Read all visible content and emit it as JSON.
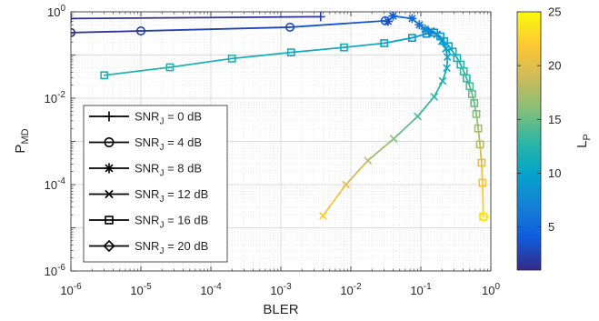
{
  "chart_data": {
    "type": "line",
    "title": "",
    "xlabel": "BLER",
    "ylabel": {
      "main": "P",
      "sub": "MD"
    },
    "xscale": "log",
    "yscale": "log",
    "xlim": [
      1e-06,
      1
    ],
    "ylim": [
      1e-06,
      1
    ],
    "grid": true,
    "minor_grid": true,
    "x_ticks": [
      {
        "value": 1e-06,
        "base": "10",
        "exp": "-6"
      },
      {
        "value": 1e-05,
        "base": "10",
        "exp": "-5"
      },
      {
        "value": 0.0001,
        "base": "10",
        "exp": "-4"
      },
      {
        "value": 0.001,
        "base": "10",
        "exp": "-3"
      },
      {
        "value": 0.01,
        "base": "10",
        "exp": "-2"
      },
      {
        "value": 0.1,
        "base": "10",
        "exp": "-1"
      },
      {
        "value": 1,
        "base": "10",
        "exp": "0"
      }
    ],
    "y_ticks": [
      {
        "value": 1e-06,
        "base": "10",
        "exp": "-6"
      },
      {
        "value": 0.0001,
        "base": "10",
        "exp": "-4"
      },
      {
        "value": 0.01,
        "base": "10",
        "exp": "-2"
      },
      {
        "value": 1,
        "base": "10",
        "exp": "0"
      }
    ],
    "colorbar": {
      "label": {
        "main": "L",
        "sub": "P"
      },
      "range": [
        1,
        25
      ],
      "ticks": [
        "5",
        "10",
        "15",
        "20",
        "25"
      ],
      "colormap": "parula",
      "stops": [
        "#352a87",
        "#0f5cdd",
        "#1481d6",
        "#06a4ca",
        "#2eb7a4",
        "#87bf77",
        "#d1bb59",
        "#fec832",
        "#f9fb0e"
      ]
    },
    "legend": {
      "placement": "bottom-left",
      "entries": [
        {
          "marker": "plus",
          "prefix": "SNR",
          "sub": "J",
          "suffix": " = 0 dB"
        },
        {
          "marker": "circle",
          "prefix": "SNR",
          "sub": "J",
          "suffix": " = 4 dB"
        },
        {
          "marker": "asterisk",
          "prefix": "SNR",
          "sub": "J",
          "suffix": " = 8 dB"
        },
        {
          "marker": "x",
          "prefix": "SNR",
          "sub": "J",
          "suffix": " = 12 dB"
        },
        {
          "marker": "square",
          "prefix": "SNR",
          "sub": "J",
          "suffix": " = 16 dB"
        },
        {
          "marker": "diamond",
          "prefix": "SNR",
          "sub": "J",
          "suffix": " = 20 dB"
        }
      ]
    },
    "series": [
      {
        "marker": "plus",
        "points": [
          {
            "x": 1e-06,
            "y": 0.7,
            "lp": 1
          },
          {
            "x": 0.0037,
            "y": 0.77,
            "lp": 2
          }
        ]
      },
      {
        "marker": "circle",
        "points": [
          {
            "x": 1e-06,
            "y": 0.33,
            "lp": 1
          },
          {
            "x": 1e-05,
            "y": 0.36,
            "lp": 2
          },
          {
            "x": 0.00135,
            "y": 0.44,
            "lp": 3
          },
          {
            "x": 0.031,
            "y": 0.62,
            "lp": 4
          }
        ]
      },
      {
        "marker": "asterisk",
        "points": [
          {
            "x": 0.034,
            "y": 0.6,
            "lp": 3
          },
          {
            "x": 0.04,
            "y": 0.8,
            "lp": 4
          },
          {
            "x": 0.075,
            "y": 0.7,
            "lp": 5
          },
          {
            "x": 0.095,
            "y": 0.5,
            "lp": 6
          },
          {
            "x": 0.115,
            "y": 0.4,
            "lp": 7
          },
          {
            "x": 0.13,
            "y": 0.35,
            "lp": 8
          }
        ]
      },
      {
        "marker": "x",
        "points": [
          {
            "x": 0.004,
            "y": 1.9e-05,
            "lp": 22
          },
          {
            "x": 0.0085,
            "y": 0.0001,
            "lp": 20
          },
          {
            "x": 0.0175,
            "y": 0.00036,
            "lp": 18
          },
          {
            "x": 0.041,
            "y": 0.00115,
            "lp": 16
          },
          {
            "x": 0.09,
            "y": 0.0038,
            "lp": 14
          },
          {
            "x": 0.155,
            "y": 0.0108,
            "lp": 13
          },
          {
            "x": 0.205,
            "y": 0.025,
            "lp": 12
          },
          {
            "x": 0.235,
            "y": 0.05,
            "lp": 11
          },
          {
            "x": 0.24,
            "y": 0.09,
            "lp": 10
          },
          {
            "x": 0.228,
            "y": 0.14,
            "lp": 9
          },
          {
            "x": 0.2,
            "y": 0.21,
            "lp": 8
          },
          {
            "x": 0.17,
            "y": 0.3,
            "lp": 6
          },
          {
            "x": 0.14,
            "y": 0.36,
            "lp": 5
          }
        ]
      },
      {
        "marker": "square",
        "points": [
          {
            "x": 3e-06,
            "y": 0.034,
            "lp": 12
          },
          {
            "x": 2.6e-05,
            "y": 0.052,
            "lp": 12
          },
          {
            "x": 0.0002,
            "y": 0.083,
            "lp": 12
          },
          {
            "x": 0.0014,
            "y": 0.115,
            "lp": 11
          },
          {
            "x": 0.008,
            "y": 0.15,
            "lp": 11
          },
          {
            "x": 0.03,
            "y": 0.188,
            "lp": 10
          },
          {
            "x": 0.075,
            "y": 0.25,
            "lp": 9
          },
          {
            "x": 0.12,
            "y": 0.31,
            "lp": 8
          },
          {
            "x": 0.155,
            "y": 0.33,
            "lp": 8
          },
          {
            "x": 0.19,
            "y": 0.27,
            "lp": 9
          },
          {
            "x": 0.215,
            "y": 0.21,
            "lp": 10
          },
          {
            "x": 0.25,
            "y": 0.16,
            "lp": 10
          },
          {
            "x": 0.285,
            "y": 0.12,
            "lp": 11
          },
          {
            "x": 0.33,
            "y": 0.085,
            "lp": 11
          },
          {
            "x": 0.37,
            "y": 0.06,
            "lp": 12
          },
          {
            "x": 0.41,
            "y": 0.042,
            "lp": 13
          },
          {
            "x": 0.45,
            "y": 0.029,
            "lp": 13
          },
          {
            "x": 0.5,
            "y": 0.019,
            "lp": 14
          },
          {
            "x": 0.54,
            "y": 0.0125,
            "lp": 15
          },
          {
            "x": 0.58,
            "y": 0.0077,
            "lp": 15
          },
          {
            "x": 0.62,
            "y": 0.0043,
            "lp": 16
          },
          {
            "x": 0.66,
            "y": 0.002,
            "lp": 17
          },
          {
            "x": 0.7,
            "y": 0.00085,
            "lp": 18
          },
          {
            "x": 0.74,
            "y": 0.00032,
            "lp": 20
          },
          {
            "x": 0.76,
            "y": 0.00011,
            "lp": 21
          },
          {
            "x": 0.78,
            "y": 1.8e-05,
            "lp": 23
          }
        ]
      },
      {
        "marker": "diamond",
        "points": [
          {
            "x": 0.8,
            "y": 1.8e-05,
            "lp": 24
          }
        ]
      }
    ]
  }
}
